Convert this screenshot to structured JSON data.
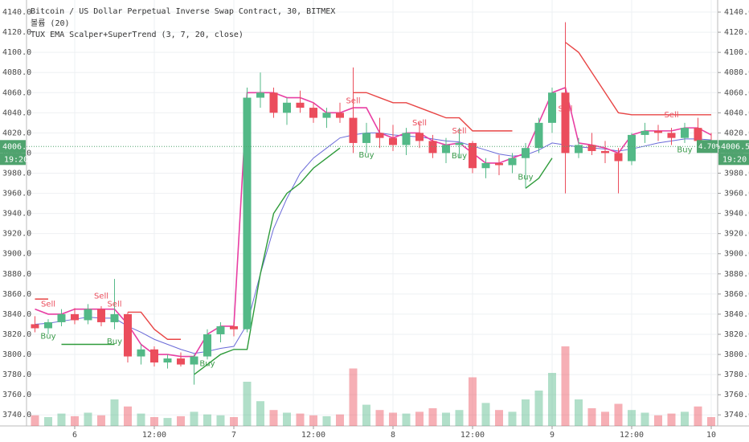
{
  "chart_data": {
    "type": "candlestick",
    "title": "Bitcoin / US Dollar Perpetual Inverse Swap Contract, 30, BITMEX",
    "volume_label": "볼륨 (20)",
    "indicator_label": "TUX EMA Scalper+SuperTrend (3, 7, 20, close)",
    "xlim": [
      -7.27,
      96.97
    ],
    "xticks": [
      {
        "value": 0,
        "label": "6"
      },
      {
        "value": 12,
        "label": "12:00"
      },
      {
        "value": 24,
        "label": "7"
      },
      {
        "value": 36,
        "label": "12:00"
      },
      {
        "value": 48,
        "label": "8"
      },
      {
        "value": 60,
        "label": "12:00"
      },
      {
        "value": 72,
        "label": "9"
      },
      {
        "value": 84,
        "label": "12:00"
      },
      {
        "value": 96,
        "label": "10"
      }
    ],
    "ylim": [
      3729,
      4152
    ],
    "yticks": [
      {
        "value": 3740,
        "label": "3740.0"
      },
      {
        "value": 3760,
        "label": "3760.0"
      },
      {
        "value": 3780,
        "label": "3780.0"
      },
      {
        "value": 3800,
        "label": "3800.0"
      },
      {
        "value": 3820,
        "label": "3820.0"
      },
      {
        "value": 3840,
        "label": "3840.0"
      },
      {
        "value": 3860,
        "label": "3860.0"
      },
      {
        "value": 3880,
        "label": "3880.0"
      },
      {
        "value": 3900,
        "label": "3900.0"
      },
      {
        "value": 3920,
        "label": "3920.0"
      },
      {
        "value": 3940,
        "label": "3940.0"
      },
      {
        "value": 3960,
        "label": "3960.0"
      },
      {
        "value": 3980,
        "label": "3980.0"
      },
      {
        "value": 4000,
        "label": "4000.0"
      },
      {
        "value": 4020,
        "label": "4020.0"
      },
      {
        "value": 4040,
        "label": "4040.0"
      },
      {
        "value": 4060,
        "label": "4060.0"
      },
      {
        "value": 4080,
        "label": "4080.0"
      },
      {
        "value": 4100,
        "label": "4100.0"
      },
      {
        "value": 4120,
        "label": "4120.0"
      },
      {
        "value": 4140,
        "label": "4140.0"
      }
    ],
    "grid": true,
    "up_color": "#53b987",
    "down_color": "#eb4d5c",
    "x": [
      -6,
      -4,
      -2,
      0,
      2,
      4,
      6,
      8,
      10,
      12,
      14,
      16,
      18,
      20,
      22,
      24,
      26,
      28,
      30,
      32,
      34,
      36,
      38,
      40,
      42,
      44,
      46,
      48,
      50,
      52,
      54,
      56,
      58,
      60,
      62,
      64,
      66,
      68,
      70,
      72,
      74,
      76,
      78,
      80,
      82,
      84,
      86,
      88,
      90,
      92,
      94,
      96
    ],
    "open": [
      3830,
      3826,
      3832,
      3840,
      3834,
      3845,
      3832,
      3840,
      3798,
      3805,
      3792,
      3796,
      3790,
      3798,
      3820,
      3828,
      3825,
      4055,
      4060,
      4040,
      4050,
      4045,
      4035,
      4040,
      4035,
      4010,
      4020,
      4015,
      4008,
      4020,
      4012,
      4000,
      4008,
      4010,
      3985,
      3990,
      3988,
      3995,
      4005,
      4030,
      4060,
      4000,
      4008,
      4002,
      4000,
      3992,
      4018,
      4022,
      4020,
      4015,
      4025,
      4012
    ],
    "high": [
      3838,
      3835,
      3845,
      3846,
      3850,
      3848,
      3875,
      3842,
      3810,
      3808,
      3800,
      3802,
      3800,
      3825,
      3832,
      3832,
      4065,
      4080,
      4065,
      4055,
      4062,
      4050,
      4045,
      4050,
      4085,
      4030,
      4035,
      4028,
      4025,
      4030,
      4018,
      4015,
      4025,
      4012,
      3995,
      3998,
      4000,
      4010,
      4035,
      4065,
      4130,
      4015,
      4020,
      4012,
      4005,
      4020,
      4030,
      4028,
      4025,
      4030,
      4035,
      4020
    ],
    "low": [
      3822,
      3820,
      3828,
      3830,
      3830,
      3828,
      3825,
      3792,
      3790,
      3788,
      3786,
      3788,
      3770,
      3795,
      3812,
      3818,
      3822,
      4045,
      4035,
      4028,
      4040,
      4030,
      4025,
      4030,
      4000,
      4000,
      4005,
      4002,
      3998,
      4005,
      3995,
      3990,
      3995,
      3980,
      3975,
      3978,
      3980,
      3965,
      4000,
      4020,
      3960,
      3995,
      3998,
      3990,
      3960,
      3988,
      4010,
      4012,
      4008,
      4010,
      4005,
      4000
    ],
    "close": [
      3826,
      3832,
      3840,
      3834,
      3845,
      3832,
      3840,
      3798,
      3805,
      3792,
      3796,
      3790,
      3798,
      3820,
      3828,
      3825,
      4055,
      4060,
      4040,
      4050,
      4045,
      4035,
      4040,
      4035,
      4010,
      4020,
      4015,
      4008,
      4020,
      4012,
      4000,
      4008,
      4010,
      3985,
      3990,
      3988,
      3995,
      4005,
      4030,
      4060,
      4000,
      4008,
      4002,
      4000,
      3992,
      4018,
      4022,
      4020,
      4015,
      4025,
      4012,
      4006.5
    ],
    "volume_lim": [
      0,
      100
    ],
    "volume": [
      12,
      10,
      14,
      11,
      15,
      12,
      30,
      22,
      14,
      10,
      9,
      11,
      16,
      13,
      12,
      10,
      50,
      28,
      18,
      15,
      14,
      12,
      11,
      13,
      65,
      24,
      18,
      15,
      14,
      16,
      20,
      15,
      18,
      55,
      26,
      18,
      16,
      30,
      40,
      60,
      90,
      30,
      20,
      16,
      25,
      18,
      15,
      12,
      14,
      16,
      22,
      10
    ],
    "ema_color": "#6a6ad8",
    "ema": [
      3830,
      3831,
      3833,
      3835,
      3837,
      3836,
      3836,
      3828,
      3822,
      3815,
      3810,
      3805,
      3801,
      3803,
      3806,
      3808,
      3830,
      3880,
      3925,
      3955,
      3980,
      3995,
      4005,
      4015,
      4018,
      4020,
      4020,
      4018,
      4017,
      4016,
      4014,
      4012,
      4011,
      4007,
      4003,
      3999,
      3997,
      3998,
      4003,
      4010,
      4008,
      4006,
      4005,
      4004,
      4002,
      4004,
      4007,
      4010,
      4012,
      4014,
      4014,
      4013
    ],
    "scalper_color": "#e83fa3",
    "scalper": [
      3845,
      3840,
      3840,
      3845,
      3845,
      3845,
      3845,
      3830,
      3810,
      3800,
      3800,
      3798,
      3798,
      3820,
      3828,
      3828,
      4060,
      4060,
      4060,
      4055,
      4055,
      4050,
      4040,
      4040,
      4045,
      4045,
      4020,
      4015,
      4020,
      4020,
      4012,
      4008,
      4010,
      4000,
      3990,
      3990,
      3995,
      4000,
      4030,
      4060,
      4065,
      4010,
      4008,
      4005,
      4000,
      4018,
      4022,
      4022,
      4022,
      4025,
      4025,
      4018
    ],
    "supertrend_up": [
      null,
      null,
      3810,
      3810,
      3810,
      3810,
      3810,
      null,
      null,
      null,
      null,
      null,
      3780,
      3790,
      3800,
      3805,
      3805,
      3880,
      3940,
      3960,
      3970,
      3985,
      3995,
      4005,
      null,
      null,
      null,
      null,
      null,
      null,
      null,
      null,
      null,
      null,
      null,
      null,
      null,
      3965,
      3975,
      3995,
      null,
      null,
      null,
      null,
      null,
      null,
      null,
      null,
      null,
      null,
      null,
      null
    ],
    "supertrend_down": [
      3855,
      3855,
      null,
      null,
      null,
      null,
      null,
      3842,
      3842,
      3825,
      3815,
      3815,
      null,
      null,
      null,
      null,
      null,
      null,
      null,
      null,
      null,
      null,
      null,
      null,
      4060,
      4060,
      4055,
      4050,
      4050,
      4045,
      4040,
      4035,
      4035,
      4022,
      4022,
      4022,
      4022,
      null,
      null,
      null,
      4110,
      4100,
      4080,
      4060,
      4040,
      4038,
      4038,
      4038,
      4038,
      4038,
      4038,
      4038
    ],
    "signals": [
      {
        "label": "Sell",
        "x": -4,
        "y": 3850,
        "color": "#eb4d5c"
      },
      {
        "label": "Buy",
        "x": -4,
        "y": 3818,
        "color": "#3a9a4a"
      },
      {
        "label": "Sell",
        "x": 4,
        "y": 3858,
        "color": "#eb4d5c"
      },
      {
        "label": "Buy",
        "x": 6,
        "y": 3813,
        "color": "#3a9a4a"
      },
      {
        "label": "Sell",
        "x": 6,
        "y": 3850,
        "color": "#eb4d5c"
      },
      {
        "label": "Buy",
        "x": 20,
        "y": 3791,
        "color": "#3a9a4a"
      },
      {
        "label": "Sell",
        "x": 42,
        "y": 4052,
        "color": "#eb4d5c"
      },
      {
        "label": "Buy",
        "x": 44,
        "y": 3998,
        "color": "#3a9a4a"
      },
      {
        "label": "Sell",
        "x": 52,
        "y": 4030,
        "color": "#eb4d5c"
      },
      {
        "label": "Sell",
        "x": 58,
        "y": 4022,
        "color": "#eb4d5c"
      },
      {
        "label": "Buy",
        "x": 58,
        "y": 3997,
        "color": "#3a9a4a"
      },
      {
        "label": "Buy",
        "x": 68,
        "y": 3976,
        "color": "#3a9a4a"
      },
      {
        "label": "Sell",
        "x": 74,
        "y": 4044,
        "color": "#eb4d5c"
      },
      {
        "label": "Sell",
        "x": 90,
        "y": 4038,
        "color": "#eb4d5c"
      },
      {
        "label": "Buy",
        "x": 92,
        "y": 4003,
        "color": "#3a9a4a"
      }
    ],
    "last_price": {
      "value": 4006.5,
      "label": "4006.5"
    },
    "countdown": "19:20",
    "change": "4.70%",
    "last_color": "#4fa36e"
  }
}
